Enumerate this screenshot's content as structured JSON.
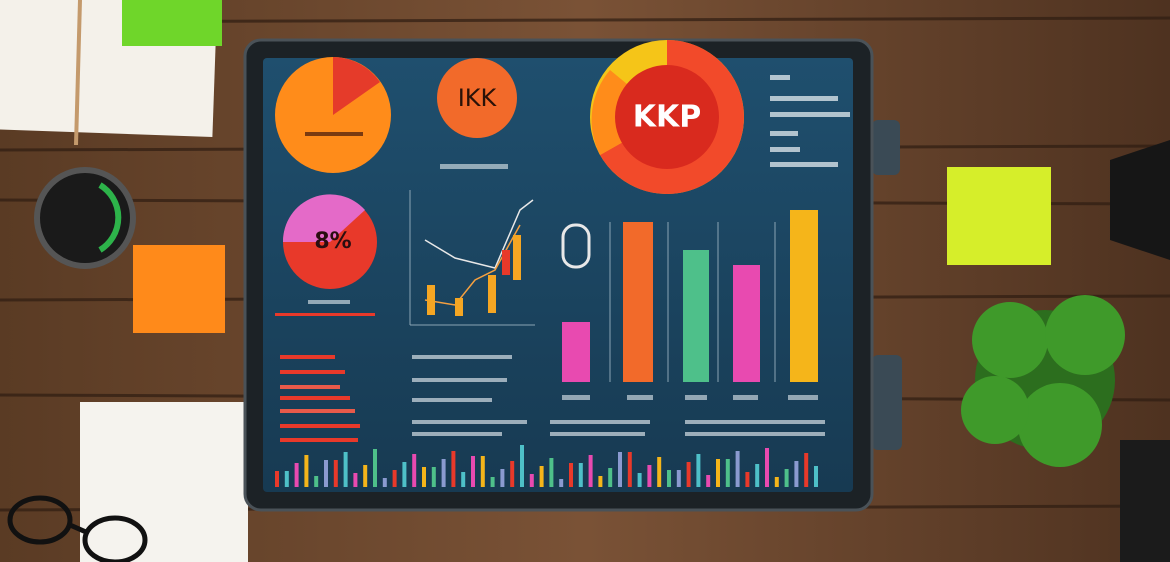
{
  "texts": {
    "kpi_top": "IKK",
    "kpi_large": "KKP",
    "percent": "8%"
  }
}
